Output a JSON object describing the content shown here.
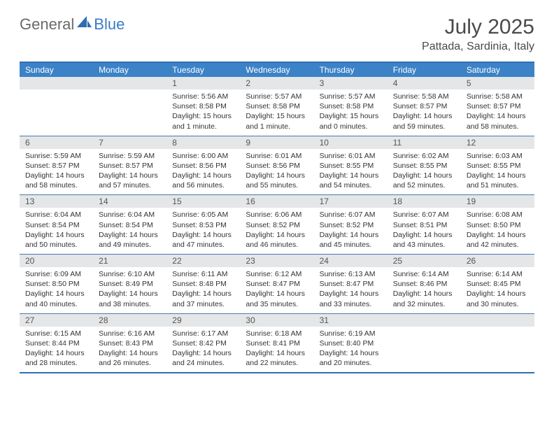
{
  "logo": {
    "text1": "General",
    "text2": "Blue",
    "icon_color": "#2f6db3"
  },
  "header": {
    "month_title": "July 2025",
    "location": "Pattada, Sardinia, Italy"
  },
  "colors": {
    "header_bar": "#3b82c7",
    "border": "#2e6db5",
    "row_divider": "#4a7aad",
    "day_header_bg": "#e4e6e8",
    "text": "#333333"
  },
  "weekdays": [
    "Sunday",
    "Monday",
    "Tuesday",
    "Wednesday",
    "Thursday",
    "Friday",
    "Saturday"
  ],
  "weeks": [
    [
      null,
      null,
      {
        "n": "1",
        "sunrise": "5:56 AM",
        "sunset": "8:58 PM",
        "dl1": "15 hours",
        "dl2": "and 1 minute."
      },
      {
        "n": "2",
        "sunrise": "5:57 AM",
        "sunset": "8:58 PM",
        "dl1": "15 hours",
        "dl2": "and 1 minute."
      },
      {
        "n": "3",
        "sunrise": "5:57 AM",
        "sunset": "8:58 PM",
        "dl1": "15 hours",
        "dl2": "and 0 minutes."
      },
      {
        "n": "4",
        "sunrise": "5:58 AM",
        "sunset": "8:57 PM",
        "dl1": "14 hours",
        "dl2": "and 59 minutes."
      },
      {
        "n": "5",
        "sunrise": "5:58 AM",
        "sunset": "8:57 PM",
        "dl1": "14 hours",
        "dl2": "and 58 minutes."
      }
    ],
    [
      {
        "n": "6",
        "sunrise": "5:59 AM",
        "sunset": "8:57 PM",
        "dl1": "14 hours",
        "dl2": "and 58 minutes."
      },
      {
        "n": "7",
        "sunrise": "5:59 AM",
        "sunset": "8:57 PM",
        "dl1": "14 hours",
        "dl2": "and 57 minutes."
      },
      {
        "n": "8",
        "sunrise": "6:00 AM",
        "sunset": "8:56 PM",
        "dl1": "14 hours",
        "dl2": "and 56 minutes."
      },
      {
        "n": "9",
        "sunrise": "6:01 AM",
        "sunset": "8:56 PM",
        "dl1": "14 hours",
        "dl2": "and 55 minutes."
      },
      {
        "n": "10",
        "sunrise": "6:01 AM",
        "sunset": "8:55 PM",
        "dl1": "14 hours",
        "dl2": "and 54 minutes."
      },
      {
        "n": "11",
        "sunrise": "6:02 AM",
        "sunset": "8:55 PM",
        "dl1": "14 hours",
        "dl2": "and 52 minutes."
      },
      {
        "n": "12",
        "sunrise": "6:03 AM",
        "sunset": "8:55 PM",
        "dl1": "14 hours",
        "dl2": "and 51 minutes."
      }
    ],
    [
      {
        "n": "13",
        "sunrise": "6:04 AM",
        "sunset": "8:54 PM",
        "dl1": "14 hours",
        "dl2": "and 50 minutes."
      },
      {
        "n": "14",
        "sunrise": "6:04 AM",
        "sunset": "8:54 PM",
        "dl1": "14 hours",
        "dl2": "and 49 minutes."
      },
      {
        "n": "15",
        "sunrise": "6:05 AM",
        "sunset": "8:53 PM",
        "dl1": "14 hours",
        "dl2": "and 47 minutes."
      },
      {
        "n": "16",
        "sunrise": "6:06 AM",
        "sunset": "8:52 PM",
        "dl1": "14 hours",
        "dl2": "and 46 minutes."
      },
      {
        "n": "17",
        "sunrise": "6:07 AM",
        "sunset": "8:52 PM",
        "dl1": "14 hours",
        "dl2": "and 45 minutes."
      },
      {
        "n": "18",
        "sunrise": "6:07 AM",
        "sunset": "8:51 PM",
        "dl1": "14 hours",
        "dl2": "and 43 minutes."
      },
      {
        "n": "19",
        "sunrise": "6:08 AM",
        "sunset": "8:50 PM",
        "dl1": "14 hours",
        "dl2": "and 42 minutes."
      }
    ],
    [
      {
        "n": "20",
        "sunrise": "6:09 AM",
        "sunset": "8:50 PM",
        "dl1": "14 hours",
        "dl2": "and 40 minutes."
      },
      {
        "n": "21",
        "sunrise": "6:10 AM",
        "sunset": "8:49 PM",
        "dl1": "14 hours",
        "dl2": "and 38 minutes."
      },
      {
        "n": "22",
        "sunrise": "6:11 AM",
        "sunset": "8:48 PM",
        "dl1": "14 hours",
        "dl2": "and 37 minutes."
      },
      {
        "n": "23",
        "sunrise": "6:12 AM",
        "sunset": "8:47 PM",
        "dl1": "14 hours",
        "dl2": "and 35 minutes."
      },
      {
        "n": "24",
        "sunrise": "6:13 AM",
        "sunset": "8:47 PM",
        "dl1": "14 hours",
        "dl2": "and 33 minutes."
      },
      {
        "n": "25",
        "sunrise": "6:14 AM",
        "sunset": "8:46 PM",
        "dl1": "14 hours",
        "dl2": "and 32 minutes."
      },
      {
        "n": "26",
        "sunrise": "6:14 AM",
        "sunset": "8:45 PM",
        "dl1": "14 hours",
        "dl2": "and 30 minutes."
      }
    ],
    [
      {
        "n": "27",
        "sunrise": "6:15 AM",
        "sunset": "8:44 PM",
        "dl1": "14 hours",
        "dl2": "and 28 minutes."
      },
      {
        "n": "28",
        "sunrise": "6:16 AM",
        "sunset": "8:43 PM",
        "dl1": "14 hours",
        "dl2": "and 26 minutes."
      },
      {
        "n": "29",
        "sunrise": "6:17 AM",
        "sunset": "8:42 PM",
        "dl1": "14 hours",
        "dl2": "and 24 minutes."
      },
      {
        "n": "30",
        "sunrise": "6:18 AM",
        "sunset": "8:41 PM",
        "dl1": "14 hours",
        "dl2": "and 22 minutes."
      },
      {
        "n": "31",
        "sunrise": "6:19 AM",
        "sunset": "8:40 PM",
        "dl1": "14 hours",
        "dl2": "and 20 minutes."
      },
      null,
      null
    ]
  ],
  "labels": {
    "sunrise_prefix": "Sunrise: ",
    "sunset_prefix": "Sunset: ",
    "daylight_prefix": "Daylight: "
  }
}
